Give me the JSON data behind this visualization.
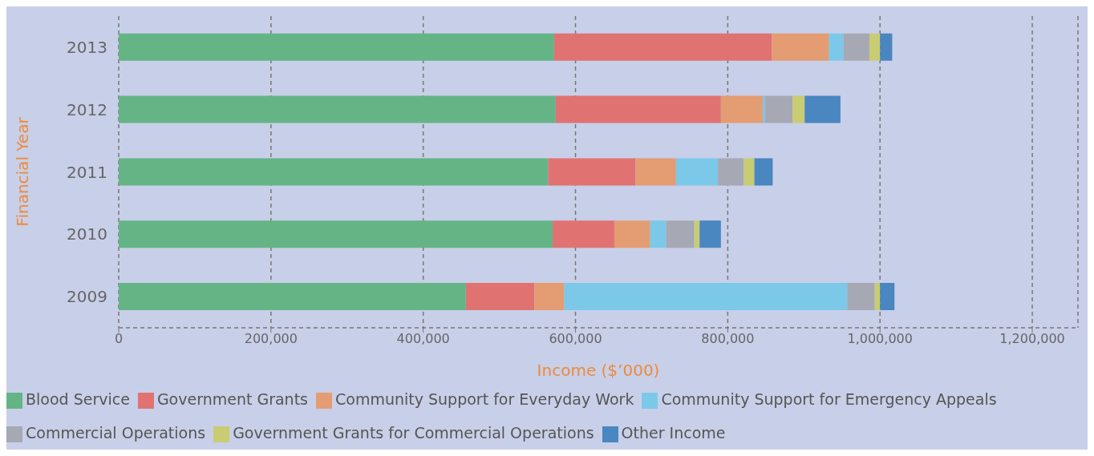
{
  "chart_data": {
    "type": "bar",
    "orientation": "horizontal",
    "stacked": true,
    "xlabel": "Income ($’000)",
    "ylabel": "Financial Year",
    "categories": [
      "2013",
      "2012",
      "2011",
      "2010",
      "2009"
    ],
    "series": [
      {
        "name": "Blood Service",
        "color": "#65b486",
        "values": [
          572000,
          574000,
          564000,
          570000,
          456000
        ]
      },
      {
        "name": "Government Grants",
        "color": "#e07272",
        "values": [
          286000,
          217000,
          115000,
          81000,
          90000
        ]
      },
      {
        "name": "Community Support for Everyday Work",
        "color": "#e49c72",
        "values": [
          75000,
          55000,
          53000,
          47000,
          39000
        ]
      },
      {
        "name": "Community Support for Emergency Appeals",
        "color": "#7cc8e8",
        "values": [
          19000,
          3000,
          55000,
          21000,
          372000
        ]
      },
      {
        "name": "Commercial Operations",
        "color": "#a6a8b4",
        "values": [
          34000,
          36000,
          34000,
          37000,
          36000
        ]
      },
      {
        "name": "Government Grants for Commercial Operations",
        "color": "#c8cc72",
        "values": [
          14000,
          16000,
          14000,
          7000,
          7000
        ]
      },
      {
        "name": "Other Income",
        "color": "#4a86c0",
        "values": [
          16000,
          47000,
          24000,
          28000,
          19000
        ]
      }
    ],
    "xlim": [
      0,
      1260000
    ],
    "xticks": [
      {
        "value": 0,
        "label": "0"
      },
      {
        "value": 200000,
        "label": "200,000"
      },
      {
        "value": 400000,
        "label": "400,000"
      },
      {
        "value": 600000,
        "label": "600,000"
      },
      {
        "value": 800000,
        "label": "800,000"
      },
      {
        "value": 1000000,
        "label": "1,000,000"
      },
      {
        "value": 1200000,
        "label": "1,200,000"
      }
    ],
    "grid": "x",
    "legend": "bottom"
  }
}
